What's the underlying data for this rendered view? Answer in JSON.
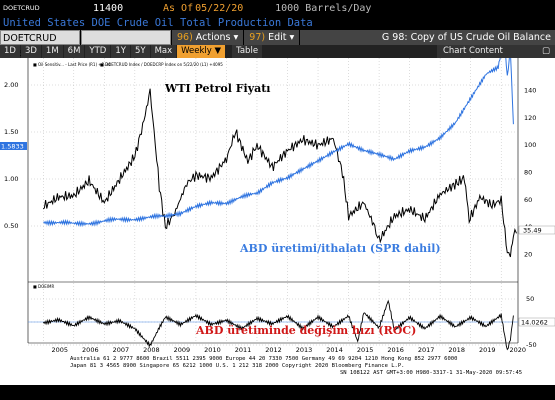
{
  "header": {
    "ticker": "DOETCRUD",
    "price": "11400",
    "as_of_label": "As Of",
    "as_of_date": "05/22/20",
    "units": "1000 Barrels/Day",
    "subtitle": "United States DOE Crude Oil Total Production Data"
  },
  "toolbar": {
    "security": "DOETCRUD Index",
    "index_button": "",
    "actions_num": "96)",
    "actions_label": "Actions ▾",
    "edit_num": "97)",
    "edit_label": "Edit ▾",
    "graph_title": "G 98: Copy of US Crude Oil Balance"
  },
  "periods": [
    "1D",
    "3D",
    "1M",
    "6M",
    "YTD",
    "1Y",
    "5Y",
    "Max"
  ],
  "frequency": "Weekly ▼",
  "table_label": "Table",
  "chart_content_label": "Chart Content",
  "colors": {
    "accent": "#f0a030",
    "blue_series": "#2f74e0",
    "roc": "#d01818"
  },
  "chart_data": {
    "type": "line",
    "annotations": {
      "wti": "WTI Petrol Fiyatı",
      "production": "ABD üretimi/ithalatı (SPR dahil)",
      "roc": "ABD üretiminde değişim hızı (ROC)"
    },
    "x_years": [
      "2005",
      "2006",
      "2007",
      "2008",
      "2009",
      "2010",
      "2011",
      "2012",
      "2013",
      "2014",
      "2015",
      "2016",
      "2017",
      "2018",
      "2019",
      "2020"
    ],
    "left_ticks": [
      "2.50",
      "2.00",
      "1.50",
      "1.00",
      "0.50"
    ],
    "right_ticks": [
      "140",
      "120",
      "100",
      "80",
      "60",
      "40",
      "20"
    ],
    "roc_right_ticks": [
      "50",
      "0",
      "-50"
    ],
    "legend_upper_left": "■ Oil Sensitiv... - Last Price (R1) +2.34",
    "legend_upper_right": "■ DOETCRUD Index / DOEDCRP Index on 5/22/20 (L1) +4095",
    "legend_lower": "■ DOEIMR",
    "left_last_value": "1.5833",
    "right_last_value": "35.49",
    "roc_last_value": "14.0262",
    "wti_points": [
      [
        2005,
        55
      ],
      [
        2005.5,
        62
      ],
      [
        2006,
        63
      ],
      [
        2006.5,
        74
      ],
      [
        2007,
        58
      ],
      [
        2007.5,
        75
      ],
      [
        2008,
        92
      ],
      [
        2008.3,
        118
      ],
      [
        2008.5,
        140
      ],
      [
        2008.8,
        70
      ],
      [
        2009,
        40
      ],
      [
        2009.3,
        50
      ],
      [
        2009.7,
        72
      ],
      [
        2010,
        78
      ],
      [
        2010.5,
        76
      ],
      [
        2011,
        90
      ],
      [
        2011.3,
        110
      ],
      [
        2011.7,
        88
      ],
      [
        2012,
        100
      ],
      [
        2012.5,
        84
      ],
      [
        2013,
        96
      ],
      [
        2013.5,
        104
      ],
      [
        2014,
        100
      ],
      [
        2014.5,
        105
      ],
      [
        2014.8,
        80
      ],
      [
        2015,
        48
      ],
      [
        2015.5,
        58
      ],
      [
        2015.9,
        38
      ],
      [
        2016,
        30
      ],
      [
        2016.5,
        48
      ],
      [
        2017,
        53
      ],
      [
        2017.5,
        46
      ],
      [
        2018,
        64
      ],
      [
        2018.8,
        76
      ],
      [
        2018.95,
        45
      ],
      [
        2019.3,
        62
      ],
      [
        2019.7,
        56
      ],
      [
        2020,
        60
      ],
      [
        2020.2,
        21
      ],
      [
        2020.3,
        18
      ],
      [
        2020.4,
        33
      ],
      [
        2020.5,
        35.49
      ]
    ],
    "ratio_points": [
      [
        2005,
        0.55
      ],
      [
        2006,
        0.52
      ],
      [
        2007,
        0.55
      ],
      [
        2008,
        0.58
      ],
      [
        2009,
        0.6
      ],
      [
        2009.5,
        0.62
      ],
      [
        2010,
        0.7
      ],
      [
        2010.5,
        0.75
      ],
      [
        2011,
        0.75
      ],
      [
        2012,
        0.85
      ],
      [
        2012.5,
        0.95
      ],
      [
        2013,
        1.0
      ],
      [
        2013.5,
        1.1
      ],
      [
        2014,
        1.2
      ],
      [
        2014.5,
        1.3
      ],
      [
        2015,
        1.38
      ],
      [
        2015.5,
        1.3
      ],
      [
        2016,
        1.25
      ],
      [
        2016.5,
        1.2
      ],
      [
        2017,
        1.3
      ],
      [
        2017.5,
        1.35
      ],
      [
        2018,
        1.45
      ],
      [
        2018.5,
        1.6
      ],
      [
        2019,
        1.85
      ],
      [
        2019.5,
        2.1
      ],
      [
        2019.9,
        2.2
      ],
      [
        2020.1,
        2.5
      ],
      [
        2020.2,
        2.1
      ],
      [
        2020.3,
        2.35
      ],
      [
        2020.4,
        1.5833
      ]
    ],
    "roc_points": [
      [
        2005,
        0
      ],
      [
        2005.5,
        5
      ],
      [
        2006,
        -10
      ],
      [
        2006.5,
        8
      ],
      [
        2007,
        -5
      ],
      [
        2007.5,
        4
      ],
      [
        2008,
        -12
      ],
      [
        2008.5,
        -50
      ],
      [
        2008.8,
        -10
      ],
      [
        2009,
        10
      ],
      [
        2009.5,
        -8
      ],
      [
        2010,
        12
      ],
      [
        2010.5,
        -5
      ],
      [
        2011,
        6
      ],
      [
        2011.5,
        -12
      ],
      [
        2012,
        8
      ],
      [
        2012.5,
        -6
      ],
      [
        2013,
        10
      ],
      [
        2013.5,
        -15
      ],
      [
        2014,
        12
      ],
      [
        2014.5,
        -8
      ],
      [
        2015,
        15
      ],
      [
        2015.3,
        -40
      ],
      [
        2015.5,
        20
      ],
      [
        2016,
        -15
      ],
      [
        2016.3,
        45
      ],
      [
        2016.5,
        -20
      ],
      [
        2017,
        10
      ],
      [
        2017.5,
        -12
      ],
      [
        2018,
        15
      ],
      [
        2018.5,
        -10
      ],
      [
        2019,
        8
      ],
      [
        2019.5,
        -12
      ],
      [
        2020,
        14
      ],
      [
        2020.2,
        -60
      ],
      [
        2020.3,
        -40
      ],
      [
        2020.4,
        14.0262
      ]
    ],
    "footer": [
      "Australia 61 2 9777 8600  Brazil 5511 2395 9000  Europe 44 20 7330 7500  Germany 49 69 9204 1210  Hong Kong 852 2977 6000",
      "Japan 81 3 4565 8900           Singapore 65 6212 1000           U.S. 1 212 318 2000           Copyright 2020 Bloomberg Finance L.P.",
      "SN 108122 AST  GMT+3:00 H980-3317-1 31-May-2020 09:57:45"
    ]
  }
}
